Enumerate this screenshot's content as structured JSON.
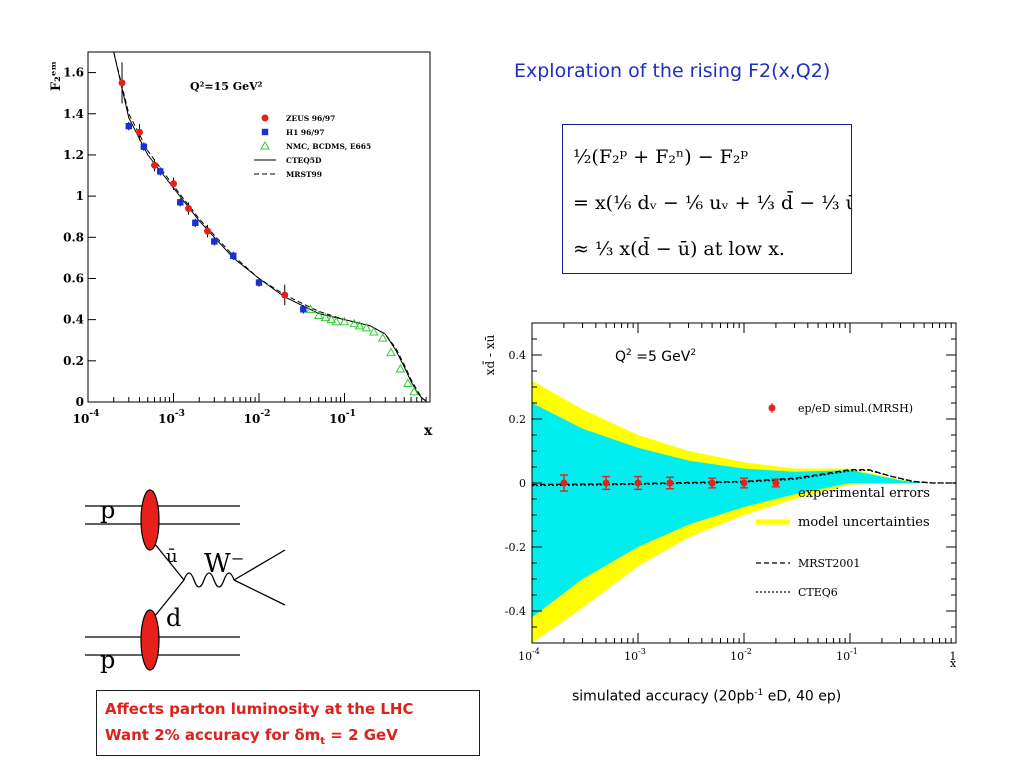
{
  "slide": {
    "title": "Exploration of the rising F2(x,Q2)",
    "caption_prefix": "simulated accuracy (20pb",
    "caption_sup": "-1",
    "caption_suffix": " eD, 40 ep)",
    "affects_line1": "Affects parton luminosity at the LHC",
    "affects_line2_prefix": "Want 2% accuracy for δm",
    "affects_line2_sub": "t",
    "affects_line2_suffix": " = 2 GeV"
  },
  "formula": {
    "line1": "½(F₂ᵖ + F₂ⁿ) − F₂ᵖ",
    "line2": "= x(⅙ dᵥ − ⅙ uᵥ + ⅓ d̄ − ⅓ ū)",
    "line3": "≈ ⅓ x(d̄ − ū) at low x."
  },
  "diagram": {
    "label_p_top": "p",
    "label_ubar": "ū",
    "label_w": "W⁻",
    "label_d": "d",
    "label_p_bottom": "p"
  },
  "chart_data": [
    {
      "type": "scatter",
      "title": "Q²=15 GeV²",
      "ylabel": "F₂ᵉᵐ",
      "xlabel": "x",
      "xscale": "log",
      "xlim": [
        0.0001,
        1
      ],
      "ylim": [
        0,
        1.7
      ],
      "x_ticks": [
        {
          "value": 0.0001,
          "base": "10",
          "exp": "-4"
        },
        {
          "value": 0.001,
          "base": "10",
          "exp": "-3"
        },
        {
          "value": 0.01,
          "base": "10",
          "exp": "-2"
        },
        {
          "value": 0.1,
          "base": "10",
          "exp": "-1"
        }
      ],
      "y_ticks": [
        {
          "value": 0,
          "label": "0"
        },
        {
          "value": 0.2,
          "label": "0.2"
        },
        {
          "value": 0.4,
          "label": "0.4"
        },
        {
          "value": 0.6,
          "label": "0.6"
        },
        {
          "value": 0.8,
          "label": "0.8"
        },
        {
          "value": 1.0,
          "label": "1"
        },
        {
          "value": 1.2,
          "label": "1.2"
        },
        {
          "value": 1.4,
          "label": "1.4"
        },
        {
          "value": 1.6,
          "label": "1.6"
        }
      ],
      "legend_position": "top-right",
      "series": [
        {
          "name": "ZEUS 96/97",
          "marker": "circle",
          "color": "#e8201a",
          "points": [
            [
              0.00025,
              1.55,
              0.1
            ],
            [
              0.0004,
              1.31,
              0.04
            ],
            [
              0.0006,
              1.15,
              0.03
            ],
            [
              0.001,
              1.06,
              0.03
            ],
            [
              0.0015,
              0.94,
              0.03
            ],
            [
              0.0025,
              0.83,
              0.03
            ],
            [
              0.02,
              0.52,
              0.05
            ]
          ]
        },
        {
          "name": "H1 96/97",
          "marker": "square",
          "color": "#1a2fd8",
          "points": [
            [
              0.0003,
              1.34,
              0.02
            ],
            [
              0.00045,
              1.24,
              0.02
            ],
            [
              0.0007,
              1.12,
              0.02
            ],
            [
              0.0012,
              0.97,
              0.02
            ],
            [
              0.0018,
              0.87,
              0.02
            ],
            [
              0.003,
              0.78,
              0.02
            ],
            [
              0.005,
              0.71,
              0.02
            ],
            [
              0.01,
              0.58,
              0.02
            ],
            [
              0.033,
              0.45,
              0.02
            ]
          ]
        },
        {
          "name": "NMC, BCDMS, E665",
          "marker": "triangle",
          "color": "#33cc33",
          "points": [
            [
              0.04,
              0.45
            ],
            [
              0.05,
              0.42
            ],
            [
              0.06,
              0.41
            ],
            [
              0.07,
              0.4
            ],
            [
              0.08,
              0.39
            ],
            [
              0.1,
              0.39
            ],
            [
              0.13,
              0.38
            ],
            [
              0.15,
              0.37
            ],
            [
              0.18,
              0.36
            ],
            [
              0.22,
              0.34
            ],
            [
              0.28,
              0.31
            ],
            [
              0.35,
              0.24
            ],
            [
              0.45,
              0.16
            ],
            [
              0.55,
              0.09
            ],
            [
              0.65,
              0.05
            ]
          ]
        },
        {
          "name": "CTEQ5D",
          "line": "solid",
          "color": "#000000",
          "x": [
            0.0002,
            0.0003,
            0.0005,
            0.001,
            0.002,
            0.005,
            0.01,
            0.02,
            0.05,
            0.1,
            0.2,
            0.3,
            0.4,
            0.5,
            0.6,
            0.7,
            0.8,
            0.9
          ],
          "y": [
            1.7,
            1.38,
            1.2,
            1.04,
            0.88,
            0.7,
            0.6,
            0.51,
            0.43,
            0.4,
            0.37,
            0.33,
            0.25,
            0.17,
            0.1,
            0.05,
            0.02,
            0.005
          ]
        },
        {
          "name": "MRST99",
          "line": "dashed",
          "color": "#000000",
          "x": [
            0.0002,
            0.0003,
            0.0005,
            0.001,
            0.002,
            0.005,
            0.01,
            0.02,
            0.05,
            0.1,
            0.2,
            0.3,
            0.4,
            0.5,
            0.6,
            0.7,
            0.8,
            0.9
          ],
          "y": [
            1.74,
            1.4,
            1.22,
            1.05,
            0.89,
            0.71,
            0.6,
            0.52,
            0.44,
            0.4,
            0.37,
            0.33,
            0.26,
            0.18,
            0.11,
            0.06,
            0.02,
            0.005
          ]
        }
      ]
    },
    {
      "type": "area",
      "annotation_prefix": "Q",
      "annotation_sup1": "2",
      "annotation_middle": " =5 GeV",
      "annotation_sup2": "2",
      "ylabel": "xd̄ - xū",
      "xlabel": "x",
      "xscale": "log",
      "xlim": [
        0.0001,
        1
      ],
      "ylim": [
        -0.5,
        0.5
      ],
      "x_ticks": [
        {
          "value": 0.0001,
          "base": "10",
          "exp": "-4"
        },
        {
          "value": 0.001,
          "base": "10",
          "exp": "-3"
        },
        {
          "value": 0.01,
          "base": "10",
          "exp": "-2"
        },
        {
          "value": 0.1,
          "base": "10",
          "exp": "-1"
        },
        {
          "value": 1,
          "base": "1",
          "exp": ""
        }
      ],
      "y_ticks": [
        {
          "value": -0.4,
          "label": "-0.4"
        },
        {
          "value": -0.2,
          "label": "-0.2"
        },
        {
          "value": 0,
          "label": "0"
        },
        {
          "value": 0.2,
          "label": "0.2"
        },
        {
          "value": 0.4,
          "label": "0.4"
        }
      ],
      "legend_position": "right",
      "bands": [
        {
          "name": "model uncertainties",
          "color": "#ffff00",
          "x": [
            0.0001,
            0.0003,
            0.001,
            0.003,
            0.01,
            0.03,
            0.1,
            0.3,
            0.5
          ],
          "upper": [
            0.32,
            0.23,
            0.15,
            0.1,
            0.065,
            0.045,
            0.045,
            0.01,
            0
          ],
          "lower": [
            -0.5,
            -0.39,
            -0.26,
            -0.17,
            -0.1,
            -0.05,
            -0.005,
            -0.002,
            0
          ]
        },
        {
          "name": "experimental errors",
          "color": "#00eeee",
          "x": [
            0.0001,
            0.0003,
            0.001,
            0.003,
            0.01,
            0.03,
            0.1,
            0.3,
            0.5
          ],
          "upper": [
            0.25,
            0.17,
            0.11,
            0.07,
            0.045,
            0.035,
            0.04,
            0.008,
            0
          ],
          "lower": [
            -0.42,
            -0.3,
            -0.2,
            -0.13,
            -0.075,
            -0.035,
            0.0,
            -0.001,
            0
          ]
        }
      ],
      "series": [
        {
          "name": "ep/eD simul.(MRSH)",
          "marker": "circle",
          "color": "#e8201a",
          "points": [
            [
              0.0002,
              0,
              0.025
            ],
            [
              0.0005,
              0,
              0.02
            ],
            [
              0.001,
              0,
              0.02
            ],
            [
              0.002,
              0,
              0.018
            ],
            [
              0.005,
              0,
              0.015
            ],
            [
              0.01,
              0,
              0.015
            ],
            [
              0.02,
              0,
              0.012
            ]
          ]
        },
        {
          "name": "MRST2001",
          "line": "dashed",
          "color": "#000000",
          "x": [
            0.0001,
            0.001,
            0.01,
            0.03,
            0.06,
            0.1,
            0.15,
            0.25,
            0.4,
            0.6,
            1
          ],
          "y": [
            -0.005,
            -0.002,
            0.005,
            0.015,
            0.03,
            0.042,
            0.042,
            0.02,
            0.005,
            0,
            0
          ]
        },
        {
          "name": "CTEQ6",
          "line": "dotted",
          "color": "#000000",
          "x": [
            0.0001,
            0.001,
            0.01,
            0.03,
            0.06,
            0.1,
            0.15,
            0.25,
            0.4,
            0.6,
            1
          ],
          "y": [
            -0.008,
            -0.004,
            0.003,
            0.012,
            0.027,
            0.038,
            0.04,
            0.02,
            0.004,
            0,
            0
          ]
        }
      ]
    }
  ]
}
